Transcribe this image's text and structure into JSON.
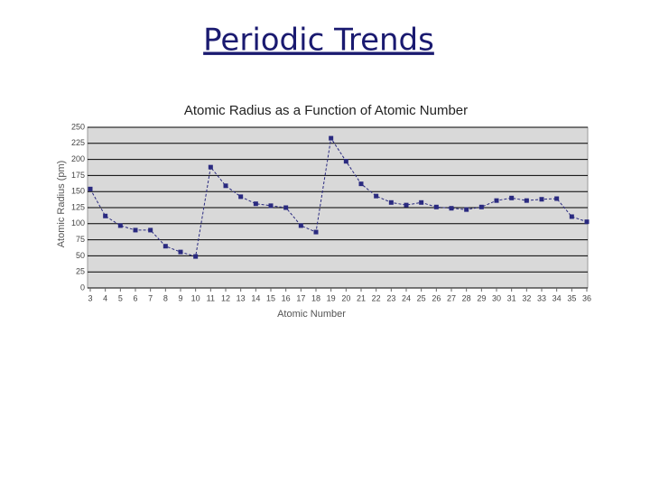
{
  "page_title": "Periodic Trends",
  "chart_data": {
    "type": "line",
    "title": "Atomic Radius as a Function of Atomic Number",
    "x_label": "Atomic Number",
    "y_label": "Atomic Radius (pm)",
    "x": [
      3,
      4,
      5,
      6,
      7,
      8,
      9,
      10,
      11,
      12,
      13,
      14,
      15,
      16,
      17,
      18,
      19,
      20,
      21,
      22,
      23,
      24,
      25,
      26,
      27,
      28,
      29,
      30,
      31,
      32,
      33,
      34,
      35,
      36
    ],
    "series": [
      {
        "name": "Atomic Radius",
        "color": "#2a2a80",
        "values": [
          154,
          112,
          97,
          90,
          90,
          65,
          56,
          49,
          188,
          159,
          142,
          131,
          128,
          125,
          97,
          87,
          233,
          197,
          162,
          143,
          133,
          129,
          133,
          126,
          124,
          122,
          126,
          136,
          140,
          136,
          138,
          139,
          111,
          103
        ]
      }
    ],
    "xlim": [
      3,
      36
    ],
    "xticks": [
      3,
      4,
      5,
      6,
      7,
      8,
      9,
      10,
      11,
      12,
      13,
      14,
      15,
      16,
      17,
      18,
      19,
      20,
      21,
      22,
      23,
      24,
      25,
      26,
      27,
      28,
      29,
      30,
      31,
      32,
      33,
      34,
      35,
      36
    ],
    "ylim": [
      0,
      250
    ],
    "yticks": [
      0,
      25,
      50,
      75,
      100,
      125,
      150,
      175,
      200,
      225,
      250
    ],
    "grid": true,
    "background": "#d9d9d9"
  }
}
